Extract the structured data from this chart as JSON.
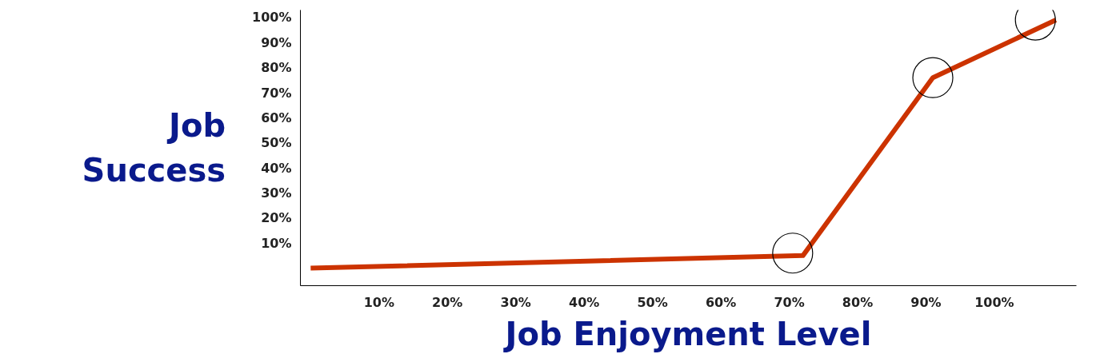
{
  "chart_data": {
    "type": "line",
    "xlabel": "Job Enjoyment Level",
    "ylabel": "Job Success",
    "x": [
      0,
      72,
      91,
      109
    ],
    "series": [
      {
        "color": "#cc3300",
        "values": [
          0,
          5,
          76,
          99
        ]
      },
      {
        "type": "scatter",
        "color": "#000000",
        "x": [
          70.5,
          91,
          106
        ],
        "values": [
          6,
          76,
          99
        ]
      }
    ],
    "xlim": [
      -1.5,
      112
    ],
    "ylim": [
      -7,
      103
    ],
    "xticks": [
      {
        "value": 10,
        "label": "10%"
      },
      {
        "value": 20,
        "label": "20%"
      },
      {
        "value": 30,
        "label": "30%"
      },
      {
        "value": 40,
        "label": "40%"
      },
      {
        "value": 50,
        "label": "50%"
      },
      {
        "value": 60,
        "label": "60%"
      },
      {
        "value": 70,
        "label": "70%"
      },
      {
        "value": 80,
        "label": "80%"
      },
      {
        "value": 90,
        "label": "90%"
      },
      {
        "value": 100,
        "label": "100%"
      }
    ],
    "yticks": [
      {
        "value": 10,
        "label": "10%"
      },
      {
        "value": 20,
        "label": "20%"
      },
      {
        "value": 30,
        "label": "30%"
      },
      {
        "value": 40,
        "label": "40%"
      },
      {
        "value": 50,
        "label": "50%"
      },
      {
        "value": 60,
        "label": "60%"
      },
      {
        "value": 70,
        "label": "70%"
      },
      {
        "value": 80,
        "label": "80%"
      },
      {
        "value": 90,
        "label": "90%"
      },
      {
        "value": 100,
        "label": "100%"
      }
    ],
    "grid": false
  }
}
